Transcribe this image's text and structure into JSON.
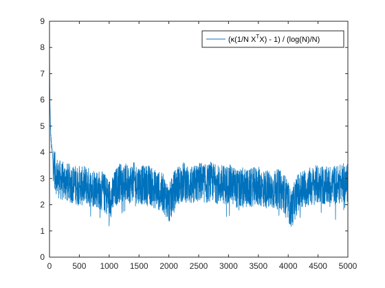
{
  "chart_data": {
    "type": "line",
    "title": "",
    "xlabel": "",
    "ylabel": "",
    "xlim": [
      0,
      5000
    ],
    "ylim": [
      0,
      9
    ],
    "x_ticks": [
      0,
      500,
      1000,
      1500,
      2000,
      2500,
      3000,
      3500,
      4000,
      4500,
      5000
    ],
    "y_ticks": [
      0,
      1,
      2,
      3,
      4,
      5,
      6,
      7,
      8,
      9
    ],
    "x_tick_labels": [
      "0",
      "500",
      "1000",
      "1500",
      "2000",
      "2500",
      "3000",
      "3500",
      "4000",
      "4500",
      "5000"
    ],
    "y_tick_labels": [
      "0",
      "1",
      "2",
      "3",
      "4",
      "5",
      "6",
      "7",
      "8",
      "9"
    ],
    "grid": false,
    "legend": {
      "placement": "top-right",
      "entries": [
        {
          "parts": [
            {
              "text": "(κ(1/N X",
              "sup": false
            },
            {
              "text": "T",
              "sup": true
            },
            {
              "text": "X) - 1) / (log(N)/N)",
              "sup": false
            }
          ]
        }
      ]
    },
    "series": [
      {
        "color": "#0072BD",
        "x": [
          1,
          2,
          3,
          5,
          8,
          12,
          18,
          25,
          35,
          50,
          65,
          80,
          100,
          125,
          150,
          200,
          250,
          300,
          350,
          400,
          450,
          500,
          550,
          600,
          650,
          700,
          750,
          800,
          850,
          900,
          950,
          1000,
          1050,
          1100,
          1150,
          1200,
          1250,
          1300,
          1350,
          1400,
          1450,
          1500,
          1550,
          1600,
          1650,
          1700,
          1750,
          1800,
          1850,
          1900,
          1950,
          2000,
          2050,
          2100,
          2150,
          2200,
          2250,
          2300,
          2350,
          2400,
          2450,
          2500,
          2550,
          2600,
          2650,
          2700,
          2750,
          2800,
          2850,
          2900,
          2950,
          3000,
          3050,
          3100,
          3150,
          3200,
          3250,
          3300,
          3350,
          3400,
          3450,
          3500,
          3550,
          3600,
          3650,
          3700,
          3750,
          3800,
          3850,
          3900,
          3950,
          4000,
          4050,
          4100,
          4150,
          4200,
          4250,
          4300,
          4350,
          4400,
          4450,
          4500,
          4550,
          4600,
          4650,
          4700,
          4750,
          4800,
          4850,
          4900,
          4950,
          5000
        ],
        "y": [
          8.7,
          8.1,
          7.2,
          6.6,
          5.8,
          5.3,
          4.9,
          4.5,
          4.2,
          3.9,
          3.6,
          3.4,
          3.2,
          3.1,
          3.0,
          2.9,
          2.9,
          2.85,
          2.8,
          2.8,
          2.75,
          2.75,
          2.7,
          2.75,
          2.7,
          2.6,
          2.7,
          2.6,
          2.55,
          2.5,
          2.4,
          2.25,
          2.3,
          2.6,
          2.8,
          2.9,
          2.85,
          2.8,
          2.8,
          2.9,
          2.8,
          2.8,
          2.75,
          2.75,
          2.8,
          2.7,
          2.6,
          2.6,
          2.5,
          2.45,
          2.3,
          2.0,
          2.3,
          2.6,
          2.75,
          2.8,
          2.9,
          2.8,
          2.75,
          2.7,
          2.8,
          2.85,
          2.9,
          2.8,
          2.8,
          2.9,
          2.85,
          2.8,
          2.75,
          2.8,
          2.75,
          2.8,
          2.75,
          2.7,
          2.6,
          2.6,
          2.7,
          2.6,
          2.6,
          2.65,
          2.7,
          2.7,
          2.65,
          2.6,
          2.6,
          2.5,
          2.55,
          2.6,
          2.6,
          2.5,
          2.4,
          2.1,
          1.8,
          2.1,
          2.4,
          2.55,
          2.6,
          2.65,
          2.7,
          2.7,
          2.75,
          2.75,
          2.8,
          2.7,
          2.7,
          2.75,
          2.8,
          2.75,
          2.8,
          2.8,
          2.85,
          2.8
        ]
      }
    ]
  }
}
